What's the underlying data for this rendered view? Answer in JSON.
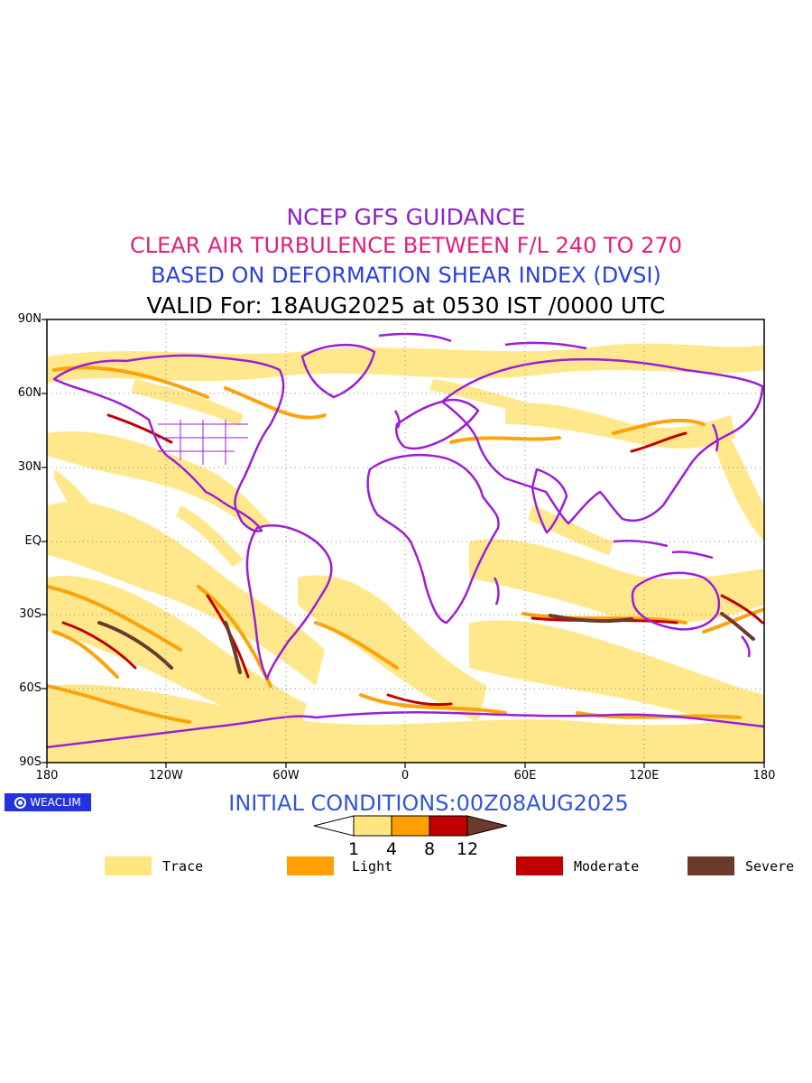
{
  "titles": {
    "line1": "NCEP GFS GUIDANCE",
    "line2": "CLEAR AIR TURBULENCE BETWEEN F/L 240 TO 270",
    "line3": "BASED ON DEFORMATION SHEAR INDEX (DVSI)",
    "line4": "VALID For: 18AUG2025 at 0530 IST /0000 UTC"
  },
  "map": {
    "projection": "equirectangular",
    "lon_range": [
      -180,
      180
    ],
    "lat_range": [
      -90,
      90
    ],
    "y_ticks": [
      "90N",
      "60N",
      "30N",
      "EQ",
      "30S",
      "60S",
      "90S"
    ],
    "x_ticks": [
      "180",
      "120W",
      "60W",
      "0",
      "60E",
      "120E",
      "180"
    ],
    "grid": "dotted",
    "coastline_color": "#9b1fd6"
  },
  "badge": {
    "icon": "weaclim-logo-icon",
    "label": "WEACLIM"
  },
  "initial_conditions": "INITIAL CONDITIONS:00Z08AUG2025",
  "colorbar": {
    "levels": [
      "1",
      "4",
      "8",
      "12"
    ],
    "colors": [
      "#ffffff",
      "#ffe680",
      "#ff9f00",
      "#c00000",
      "#6b3a2a"
    ]
  },
  "legend": [
    {
      "label": "Trace",
      "color": "#ffe680"
    },
    {
      "label": "Light",
      "color": "#ff9f00"
    },
    {
      "label": "Moderate",
      "color": "#c00000"
    },
    {
      "label": "Severe",
      "color": "#6b3a2a"
    }
  ]
}
